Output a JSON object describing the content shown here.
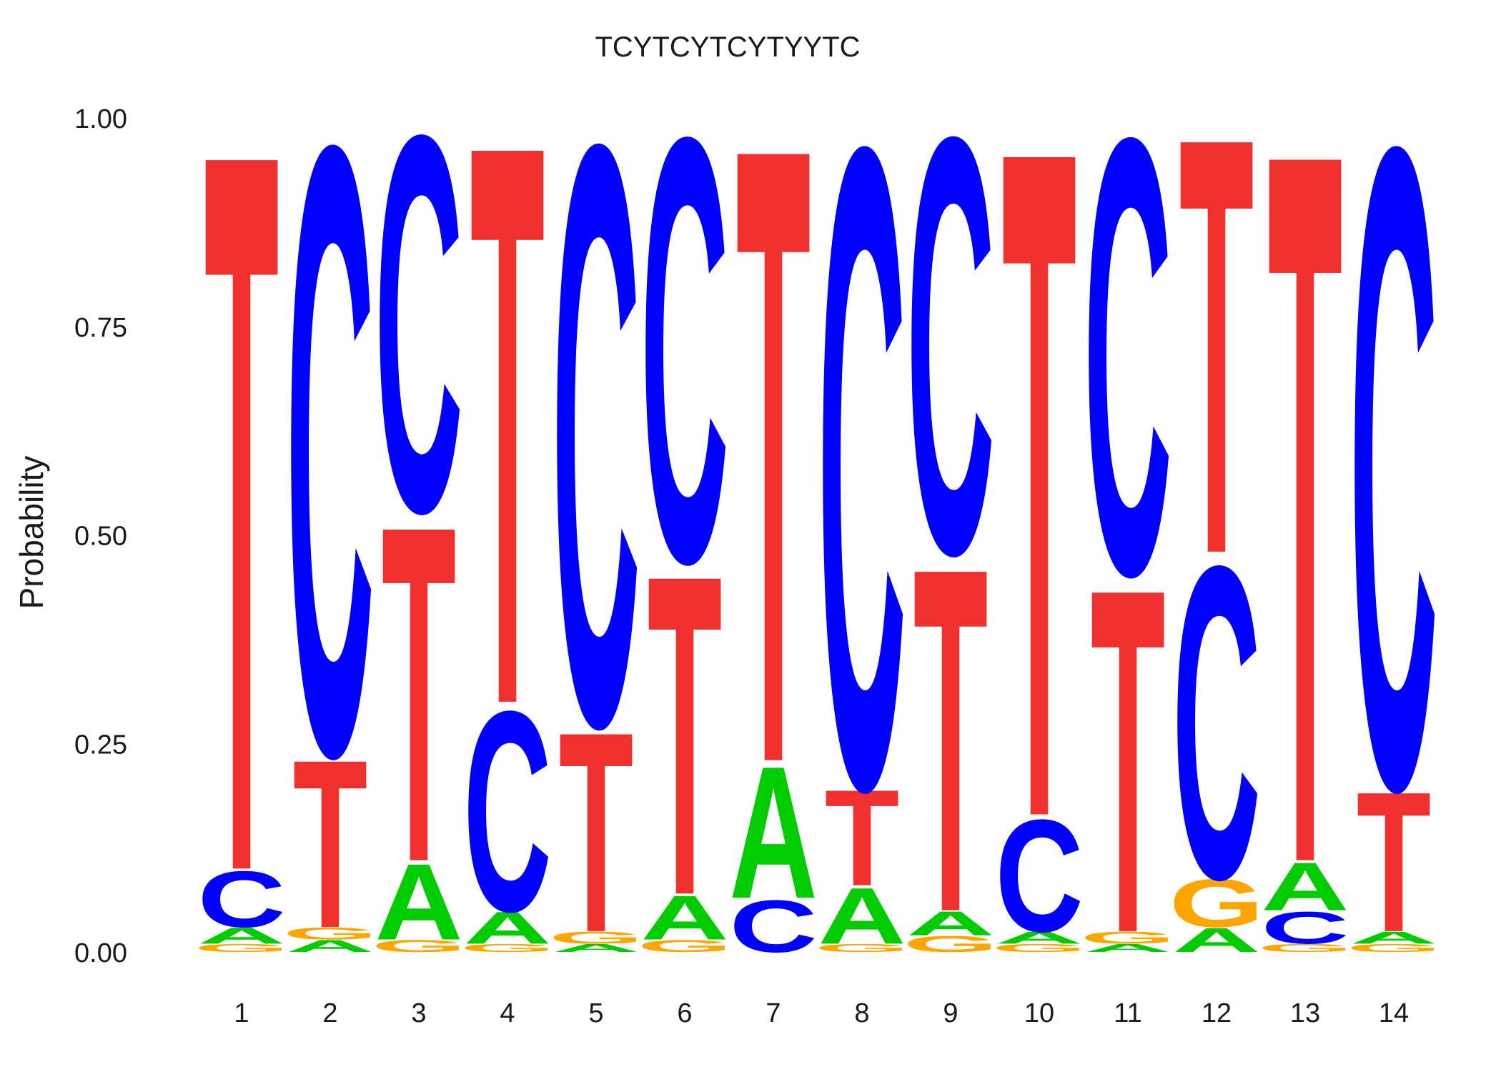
{
  "chart_data": {
    "type": "sequence-logo",
    "title": "TCYTCYTCYTYYTC",
    "ylabel": "Probability",
    "xlabel": "",
    "ylim": [
      0,
      1
    ],
    "yticks": [
      "0.00",
      "0.25",
      "0.50",
      "0.75",
      "1.00"
    ],
    "categories": [
      "1",
      "2",
      "3",
      "4",
      "5",
      "6",
      "7",
      "8",
      "9",
      "10",
      "11",
      "12",
      "13",
      "14"
    ],
    "colors": {
      "A": "#00cc00",
      "C": "#0000ff",
      "G": "#ffa500",
      "T": "#f0302f"
    },
    "positions": [
      [
        [
          "G",
          0.01
        ],
        [
          "A",
          0.02
        ],
        [
          "C",
          0.07
        ],
        [
          "T",
          0.9
        ]
      ],
      [
        [
          "A",
          0.015
        ],
        [
          "G",
          0.015
        ],
        [
          "T",
          0.21
        ],
        [
          "C",
          0.76
        ]
      ],
      [
        [
          "G",
          0.015
        ],
        [
          "A",
          0.095
        ],
        [
          "T",
          0.42
        ],
        [
          "C",
          0.47
        ]
      ],
      [
        [
          "G",
          0.01
        ],
        [
          "A",
          0.04
        ],
        [
          "C",
          0.25
        ],
        [
          "T",
          0.7
        ]
      ],
      [
        [
          "A",
          0.01
        ],
        [
          "G",
          0.015
        ],
        [
          "T",
          0.25
        ],
        [
          "C",
          0.725
        ]
      ],
      [
        [
          "G",
          0.015
        ],
        [
          "A",
          0.055
        ],
        [
          "T",
          0.4
        ],
        [
          "C",
          0.53
        ]
      ],
      [
        [
          "C",
          0.065
        ],
        [
          "A",
          0.165
        ],
        [
          "T",
          0.77
        ]
      ],
      [
        [
          "G",
          0.01
        ],
        [
          "A",
          0.07
        ],
        [
          "T",
          0.12
        ],
        [
          "C",
          0.8
        ]
      ],
      [
        [
          "G",
          0.02
        ],
        [
          "A",
          0.03
        ],
        [
          "T",
          0.43
        ],
        [
          "C",
          0.52
        ]
      ],
      [
        [
          "G",
          0.01
        ],
        [
          "A",
          0.015
        ],
        [
          "C",
          0.14
        ],
        [
          "T",
          0.835
        ]
      ],
      [
        [
          "A",
          0.01
        ],
        [
          "G",
          0.015
        ],
        [
          "T",
          0.43
        ],
        [
          "C",
          0.545
        ]
      ],
      [
        [
          "A",
          0.03
        ],
        [
          "G",
          0.06
        ],
        [
          "C",
          0.39
        ],
        [
          "T",
          0.52
        ]
      ],
      [
        [
          "G",
          0.01
        ],
        [
          "C",
          0.04
        ],
        [
          "A",
          0.06
        ],
        [
          "T",
          0.89
        ]
      ],
      [
        [
          "G",
          0.01
        ],
        [
          "A",
          0.015
        ],
        [
          "T",
          0.175
        ],
        [
          "C",
          0.8
        ]
      ]
    ]
  }
}
